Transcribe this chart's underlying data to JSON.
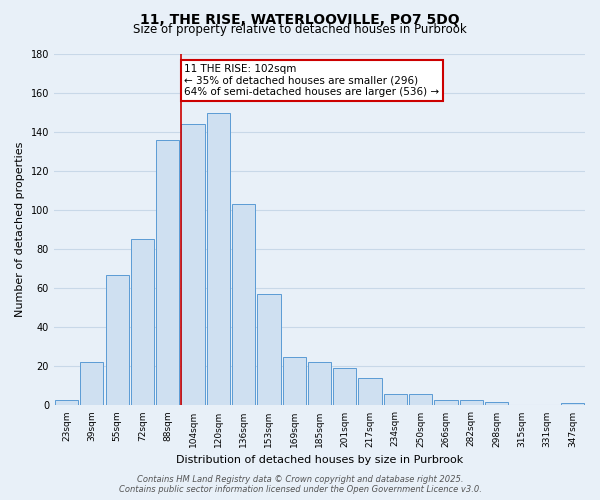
{
  "title": "11, THE RISE, WATERLOOVILLE, PO7 5DQ",
  "subtitle": "Size of property relative to detached houses in Purbrook",
  "xlabel": "Distribution of detached houses by size in Purbrook",
  "ylabel": "Number of detached properties",
  "bar_labels": [
    "23sqm",
    "39sqm",
    "55sqm",
    "72sqm",
    "88sqm",
    "104sqm",
    "120sqm",
    "136sqm",
    "153sqm",
    "169sqm",
    "185sqm",
    "201sqm",
    "217sqm",
    "234sqm",
    "250sqm",
    "266sqm",
    "282sqm",
    "298sqm",
    "315sqm",
    "331sqm",
    "347sqm"
  ],
  "bar_values": [
    3,
    22,
    67,
    85,
    136,
    144,
    150,
    103,
    57,
    25,
    22,
    19,
    14,
    6,
    6,
    3,
    3,
    2,
    0,
    0,
    1
  ],
  "bar_color": "#cfe0f1",
  "bar_edge_color": "#5b9bd5",
  "red_line_color": "#cc0000",
  "red_line_bar_index": 5,
  "annotation_text_line1": "11 THE RISE: 102sqm",
  "annotation_text_line2": "← 35% of detached houses are smaller (296)",
  "annotation_text_line3": "64% of semi-detached houses are larger (536) →",
  "ylim": [
    0,
    180
  ],
  "yticks": [
    0,
    20,
    40,
    60,
    80,
    100,
    120,
    140,
    160,
    180
  ],
  "footer_line1": "Contains HM Land Registry data © Crown copyright and database right 2025.",
  "footer_line2": "Contains public sector information licensed under the Open Government Licence v3.0.",
  "bg_color": "#e8f0f8",
  "grid_color": "#c8d8e8",
  "title_fontsize": 10,
  "subtitle_fontsize": 8.5,
  "axis_label_fontsize": 8,
  "tick_fontsize": 6.5,
  "footer_fontsize": 6,
  "annotation_fontsize": 7.5
}
